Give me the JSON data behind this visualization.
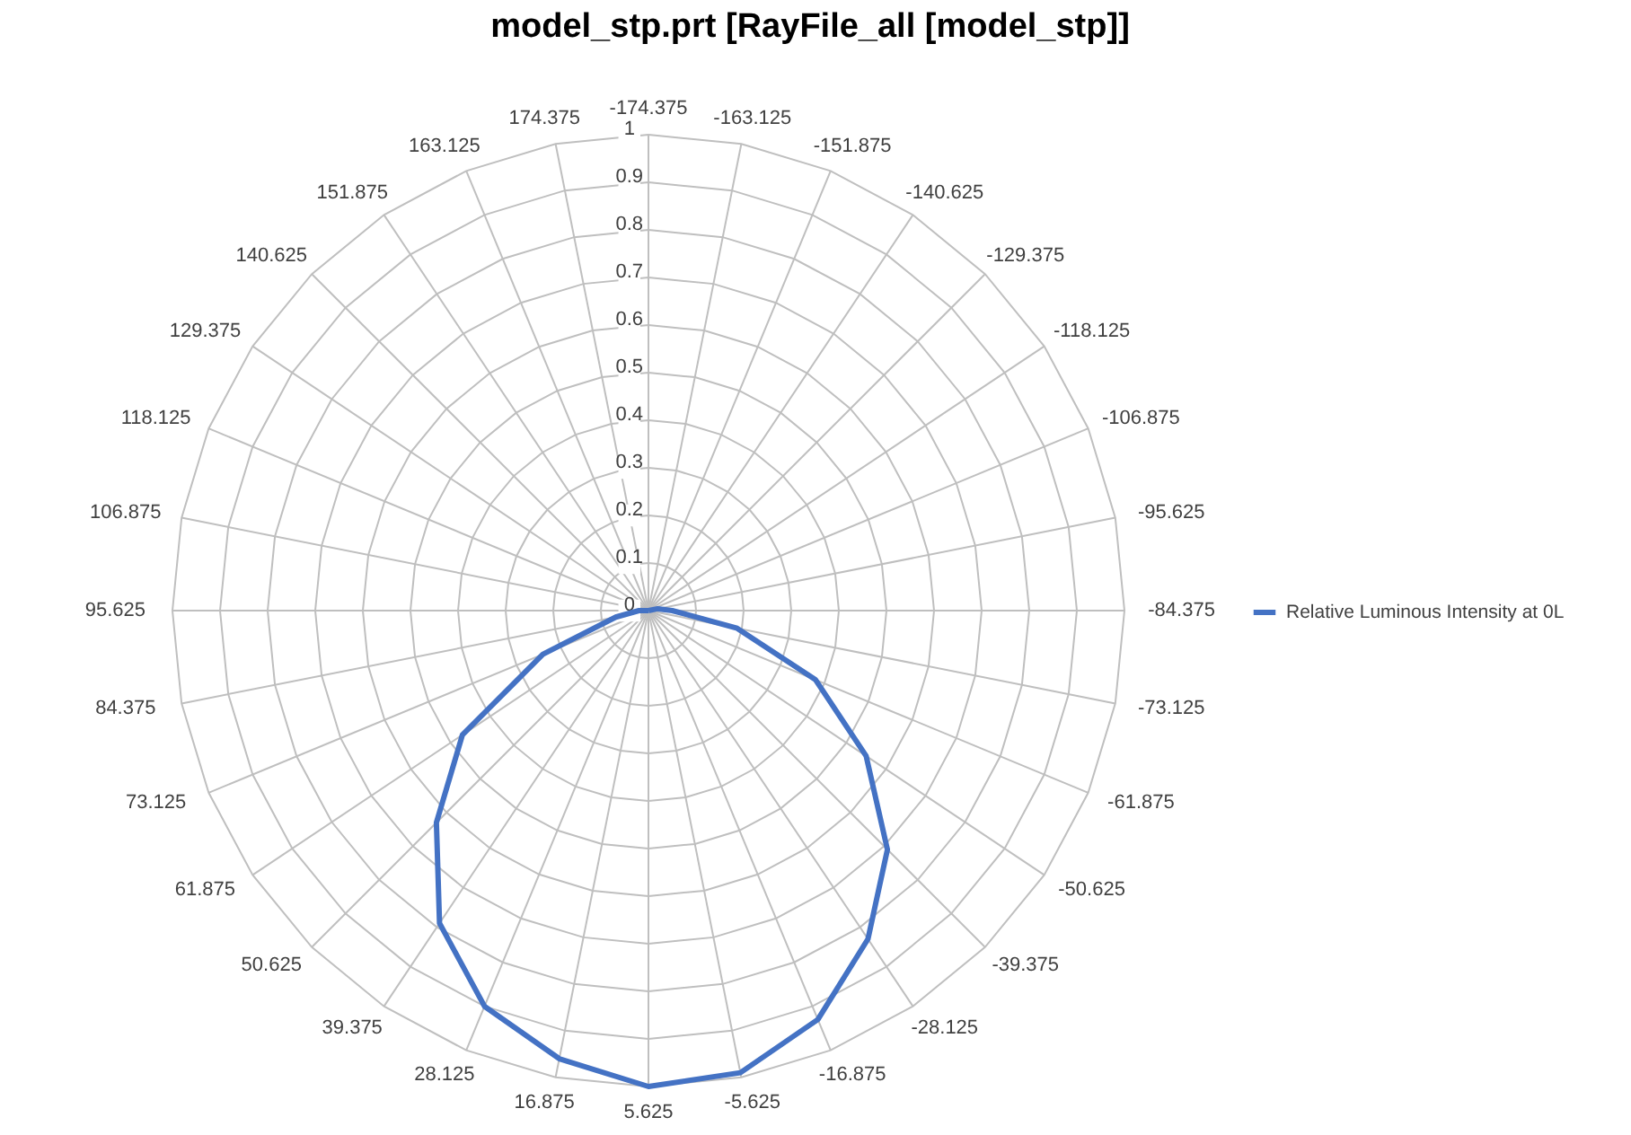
{
  "chart_data": {
    "type": "radar",
    "title": "model_stp.prt [RayFile_all [model_stp]]",
    "categories": [
      "-174.375",
      "-163.125",
      "-151.875",
      "-140.625",
      "-129.375",
      "-118.125",
      "-106.875",
      "-95.625",
      "-84.375",
      "-73.125",
      "-61.875",
      "-50.625",
      "-39.375",
      "-28.125",
      "-16.875",
      "-5.625",
      "5.625",
      "16.875",
      "28.125",
      "39.375",
      "50.625",
      "61.875",
      "73.125",
      "84.375",
      "95.625",
      "106.875",
      "118.125",
      "129.375",
      "140.625",
      "151.875",
      "163.125",
      "174.375"
    ],
    "series": [
      {
        "name": "Relative Luminous Intensity at 0L",
        "color": "#4472c4",
        "values": [
          0,
          0,
          0,
          0,
          0,
          0,
          0,
          0.02,
          0.05,
          0.19,
          0.38,
          0.55,
          0.71,
          0.83,
          0.93,
          0.99,
          1.0,
          0.96,
          0.9,
          0.79,
          0.63,
          0.47,
          0.24,
          0.07,
          0.02,
          0,
          0,
          0,
          0,
          0,
          0,
          0
        ]
      }
    ],
    "ylim": [
      0,
      1
    ],
    "yticks": [
      0,
      0.1,
      0.2,
      0.3,
      0.4,
      0.5,
      0.6,
      0.7,
      0.8,
      0.9,
      1
    ],
    "grid": true,
    "legend": "right"
  }
}
